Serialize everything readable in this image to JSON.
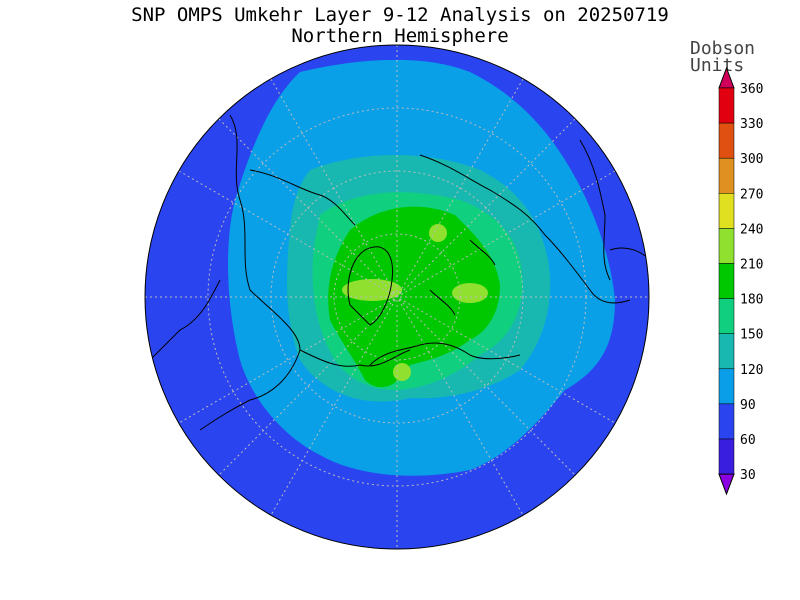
{
  "title": "SNP OMPS Umkehr Layer 9-12 Analysis on 20250719",
  "subtitle": "Northern Hemisphere",
  "colorbar": {
    "units_line1": "Dobson",
    "units_line2": "Units",
    "ticks": [
      "30",
      "60",
      "90",
      "120",
      "150",
      "180",
      "210",
      "240",
      "270",
      "300",
      "330",
      "360"
    ],
    "colors": [
      "#8a00e0",
      "#3a1ee0",
      "#2a44f0",
      "#0a9ee8",
      "#18b8b0",
      "#10d080",
      "#00c800",
      "#90e030",
      "#e0e020",
      "#e09020",
      "#e05010",
      "#e00010",
      "#d0005a"
    ]
  },
  "map": {
    "projection": "north polar stereographic",
    "contour_levels_shown": [
      "90",
      "120",
      "150",
      "180",
      "210",
      "240"
    ]
  }
}
